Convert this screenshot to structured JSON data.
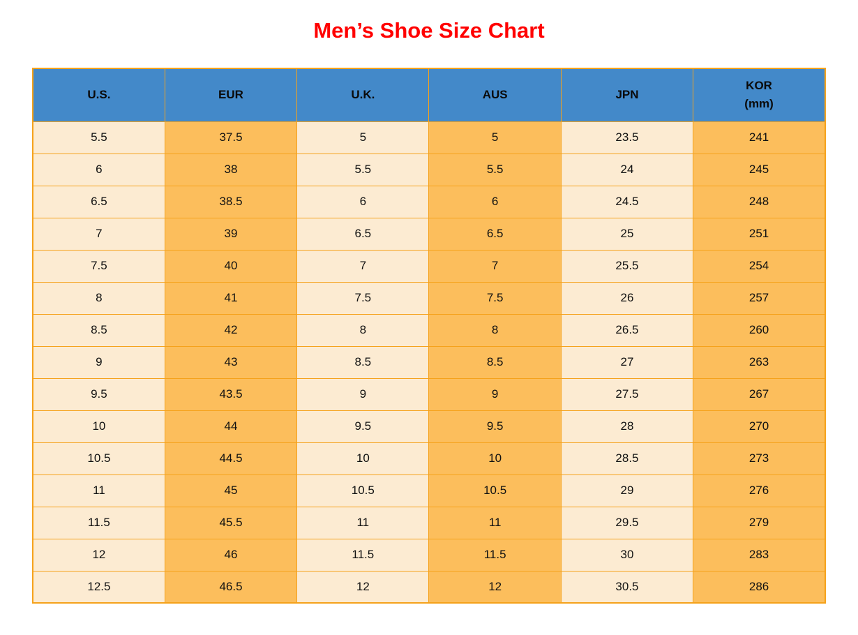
{
  "title": "Men’s Shoe Size Chart",
  "colors": {
    "title_red": "#FF0000",
    "header_blue": "#4389C9",
    "cell_light": "#FCEBD2",
    "cell_orange": "#FCBE5C",
    "border_orange": "#F5A21B",
    "text": "#111111"
  },
  "chart_data": {
    "type": "table",
    "title": "Men’s Shoe Size Chart",
    "columns": [
      "U.S.",
      "EUR",
      "U.K.",
      "AUS",
      "JPN",
      "KOR (mm)"
    ],
    "header_lines": [
      [
        "U.S."
      ],
      [
        "EUR"
      ],
      [
        "U.K."
      ],
      [
        "AUS"
      ],
      [
        "JPN"
      ],
      [
        "KOR",
        "(mm)"
      ]
    ],
    "column_shading": [
      "light",
      "orange",
      "light",
      "orange",
      "light",
      "orange"
    ],
    "rows": [
      [
        "5.5",
        "37.5",
        "5",
        "5",
        "23.5",
        "241"
      ],
      [
        "6",
        "38",
        "5.5",
        "5.5",
        "24",
        "245"
      ],
      [
        "6.5",
        "38.5",
        "6",
        "6",
        "24.5",
        "248"
      ],
      [
        "7",
        "39",
        "6.5",
        "6.5",
        "25",
        "251"
      ],
      [
        "7.5",
        "40",
        "7",
        "7",
        "25.5",
        "254"
      ],
      [
        "8",
        "41",
        "7.5",
        "7.5",
        "26",
        "257"
      ],
      [
        "8.5",
        "42",
        "8",
        "8",
        "26.5",
        "260"
      ],
      [
        "9",
        "43",
        "8.5",
        "8.5",
        "27",
        "263"
      ],
      [
        "9.5",
        "43.5",
        "9",
        "9",
        "27.5",
        "267"
      ],
      [
        "10",
        "44",
        "9.5",
        "9.5",
        "28",
        "270"
      ],
      [
        "10.5",
        "44.5",
        "10",
        "10",
        "28.5",
        "273"
      ],
      [
        "11",
        "45",
        "10.5",
        "10.5",
        "29",
        "276"
      ],
      [
        "11.5",
        "45.5",
        "11",
        "11",
        "29.5",
        "279"
      ],
      [
        "12",
        "46",
        "11.5",
        "11.5",
        "30",
        "283"
      ],
      [
        "12.5",
        "46.5",
        "12",
        "12",
        "30.5",
        "286"
      ]
    ]
  }
}
